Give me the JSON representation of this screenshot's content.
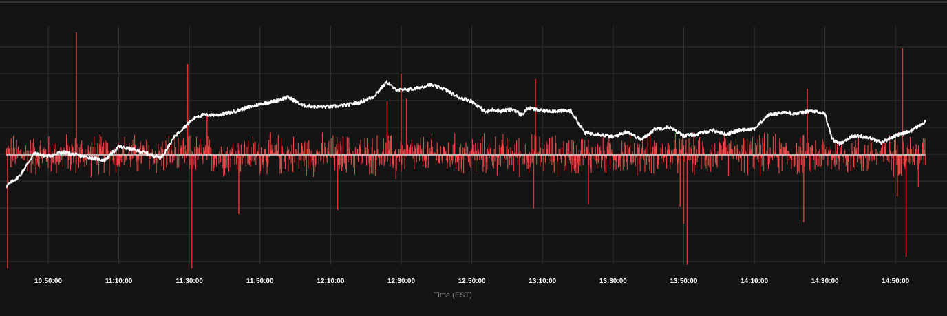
{
  "chart_data": {
    "type": "line",
    "title": "",
    "xlabel": "Time (EST)",
    "ylabel": "",
    "x_range": [
      "10:38:00",
      "14:58:30"
    ],
    "x_ticks": [
      "10:50:00",
      "11:10:00",
      "11:30:00",
      "11:50:00",
      "12:10:00",
      "12:30:00",
      "12:50:00",
      "13:10:00",
      "13:30:00",
      "13:50:00",
      "14:10:00",
      "14:30:00",
      "14:50:00"
    ],
    "grid": true,
    "legend": "none",
    "series": [
      {
        "style": "line",
        "color": "#ffffff",
        "x": [
          "10:38:00",
          "10:42:00",
          "10:46:00",
          "10:50:00",
          "10:54:00",
          "10:58:00",
          "11:02:00",
          "11:06:00",
          "11:10:00",
          "11:14:00",
          "11:18:00",
          "11:22:00",
          "11:26:00",
          "11:28:00",
          "11:32:00",
          "11:34:00",
          "11:38:00",
          "11:42:00",
          "11:46:00",
          "11:50:00",
          "11:54:00",
          "11:58:00",
          "12:02:00",
          "12:06:00",
          "12:10:00",
          "12:14:00",
          "12:18:00",
          "12:22:00",
          "12:26:00",
          "12:28:00",
          "12:30:00",
          "12:34:00",
          "12:38:00",
          "12:42:00",
          "12:46:00",
          "12:50:00",
          "12:54:00",
          "12:56:00",
          "12:58:00",
          "13:02:00",
          "13:04:00",
          "13:06:00",
          "13:10:00",
          "13:14:00",
          "13:18:00",
          "13:22:00",
          "13:26:00",
          "13:30:00",
          "13:34:00",
          "13:38:00",
          "13:42:00",
          "13:46:00",
          "13:50:00",
          "13:54:00",
          "13:58:00",
          "14:02:00",
          "14:06:00",
          "14:10:00",
          "14:14:00",
          "14:18:00",
          "14:22:00",
          "14:26:00",
          "14:30:00",
          "14:32:00",
          "14:34:00",
          "14:38:00",
          "14:42:00",
          "14:46:00",
          "14:50:00",
          "14:54:00",
          "14:58:30"
        ],
        "values": [
          -46,
          -30,
          2,
          -2,
          4,
          0,
          -4,
          -8,
          12,
          8,
          2,
          -4,
          28,
          38,
          56,
          58,
          58,
          62,
          68,
          74,
          78,
          84,
          72,
          70,
          70,
          72,
          76,
          84,
          106,
          96,
          94,
          96,
          102,
          96,
          84,
          78,
          62,
          66,
          64,
          66,
          58,
          68,
          64,
          64,
          64,
          32,
          30,
          26,
          34,
          22,
          38,
          40,
          28,
          30,
          36,
          30,
          36,
          38,
          58,
          62,
          60,
          64,
          60,
          24,
          16,
          28,
          26,
          18,
          28,
          34,
          48
        ]
      },
      {
        "style": "spikes",
        "color": "#e03030",
        "baseline": 0,
        "x": [
          "10:38:30",
          "10:58:00",
          "11:29:30",
          "11:30:40",
          "11:35:00",
          "11:44:00",
          "12:12:00",
          "12:26:00",
          "12:28:30",
          "12:30:00",
          "12:31:30",
          "13:08:00",
          "13:07:30",
          "13:23:00",
          "13:50:00",
          "13:51:00",
          "13:49:00",
          "14:25:00",
          "14:24:00",
          "14:52:00",
          "14:53:00",
          "14:50:30",
          "14:56:30"
        ],
        "values": [
          -165,
          178,
          132,
          -165,
          60,
          -86,
          -80,
          78,
          -35,
          118,
          82,
          110,
          -78,
          -72,
          -100,
          -160,
          -75,
          96,
          -98,
          155,
          -148,
          -60,
          -47
        ]
      },
      {
        "style": "line",
        "color": "#d8d8d8",
        "x": [
          "10:38:00",
          "14:58:30"
        ],
        "values": [
          0,
          0
        ]
      }
    ],
    "noise": {
      "color": "#ff4a4a",
      "amplitude": 30,
      "interval_seconds": 10
    }
  }
}
